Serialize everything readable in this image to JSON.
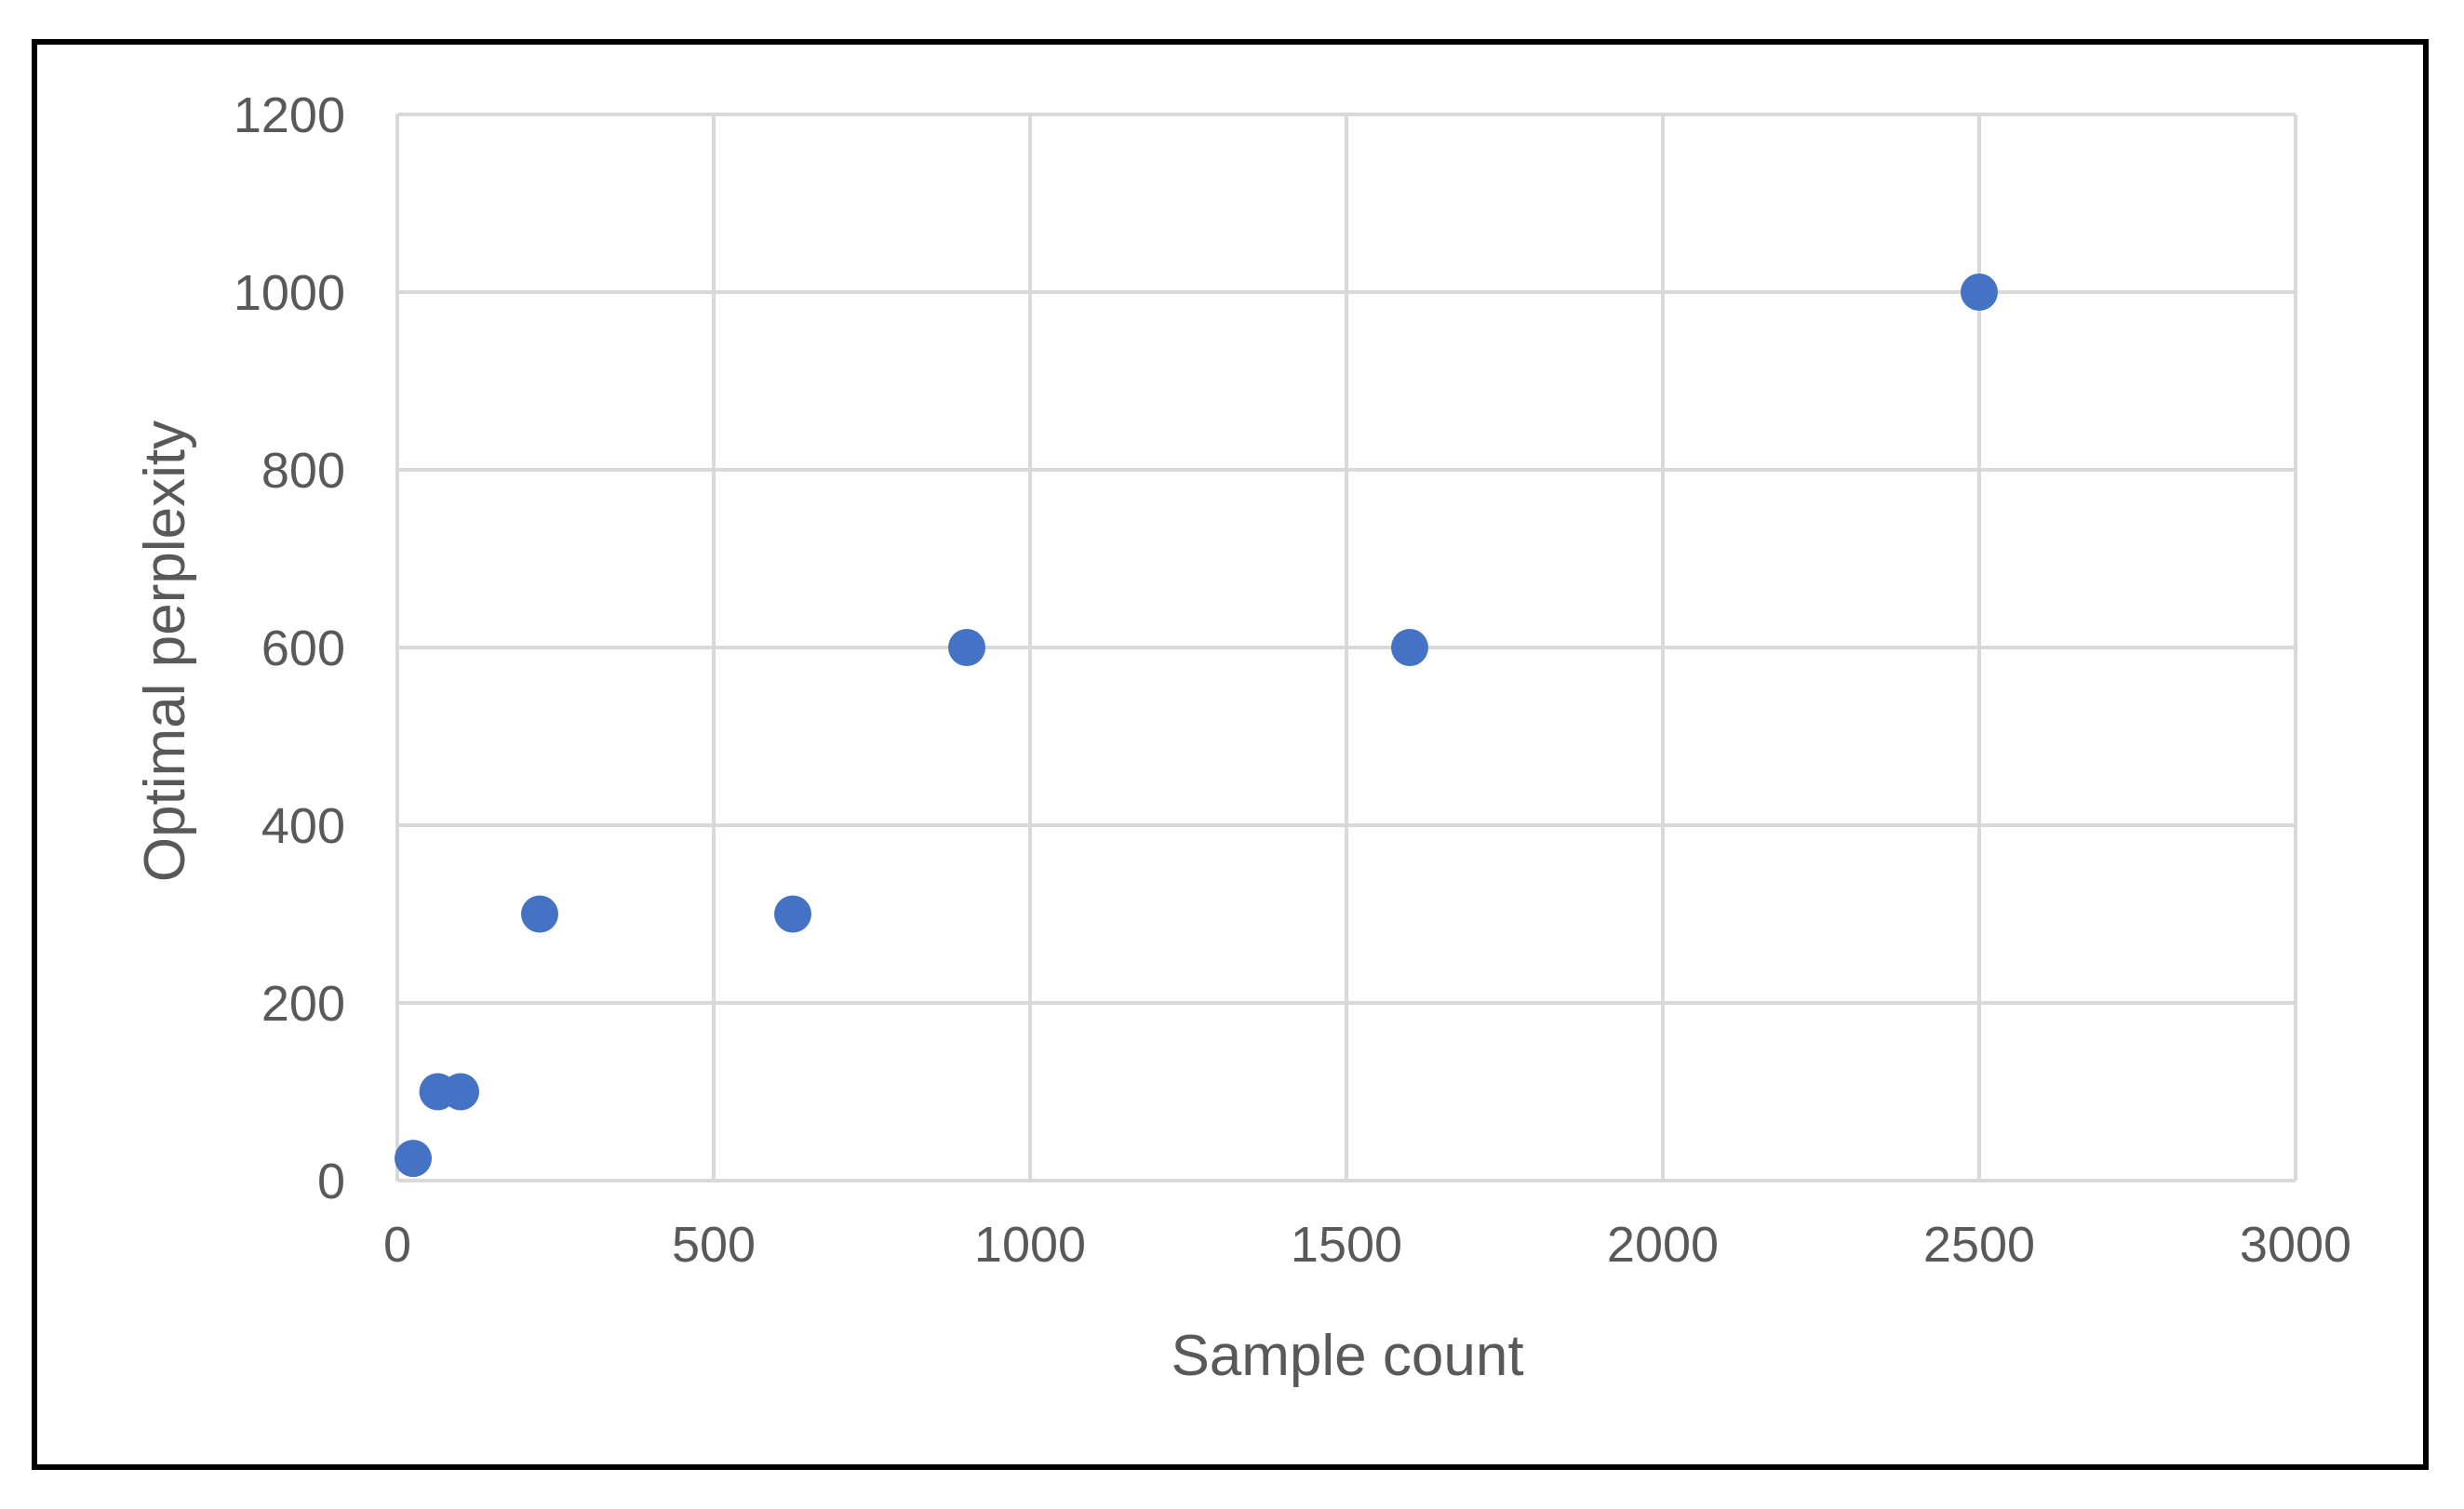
{
  "chart_data": {
    "type": "scatter",
    "title": "",
    "xlabel": "Sample count",
    "ylabel": "Optimal perplexity",
    "xlim": [
      0,
      3000
    ],
    "ylim": [
      0,
      1200
    ],
    "x_ticks": [
      0,
      500,
      1000,
      1500,
      2000,
      2500,
      3000
    ],
    "y_ticks": [
      0,
      200,
      400,
      600,
      800,
      1000,
      1200
    ],
    "grid": true,
    "legend": "none",
    "series": [
      {
        "color": "#4472C4",
        "points": [
          {
            "x": 25,
            "y": 25
          },
          {
            "x": 64,
            "y": 100
          },
          {
            "x": 100,
            "y": 100
          },
          {
            "x": 225,
            "y": 300
          },
          {
            "x": 625,
            "y": 300
          },
          {
            "x": 900,
            "y": 600
          },
          {
            "x": 1600,
            "y": 600
          },
          {
            "x": 2500,
            "y": 1000
          }
        ]
      }
    ],
    "colors": {
      "grid": "#D9D9D9",
      "text": "#595959",
      "frame": "#000000"
    }
  }
}
